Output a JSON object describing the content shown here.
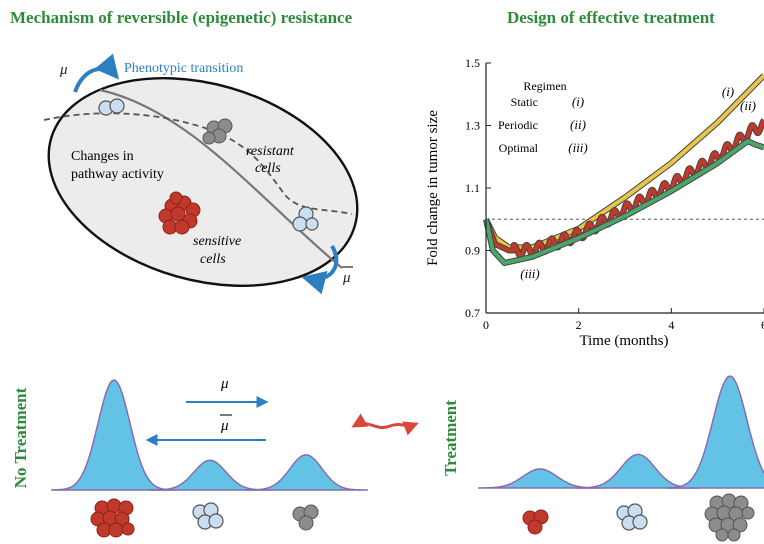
{
  "left_panel": {
    "title": "Mechanism of reversible (epigenetic) resistance",
    "mu_symbol": "μ",
    "mu_bar_symbol": "μ",
    "transition_label": "Phenotypic transition",
    "pathway_label_line1": "Changes in",
    "pathway_label_line2": "pathway activity",
    "resistant_line1": "resistant",
    "resistant_line2": "cells",
    "sensitive_line1": "sensitive",
    "sensitive_line2": "cells"
  },
  "right_panel": {
    "title": "Design of effective treatment"
  },
  "chart_data": {
    "type": "line",
    "xlabel": "Time (months)",
    "ylabel": "Fold change in tumor size",
    "xlim": [
      0,
      6
    ],
    "ylim": [
      0.7,
      1.5
    ],
    "xticks": [
      "0",
      "2",
      "4",
      "6"
    ],
    "yticks": [
      "0.7",
      "0.9",
      "1.1",
      "1.3",
      "1.5"
    ],
    "reference_line_y": 1.0,
    "legend_title": "Regimen",
    "series": [
      {
        "name": "Static",
        "tag": "(i)",
        "color": "#e8c64a",
        "x": [
          0,
          0.2,
          0.5,
          1.0,
          2.0,
          3.0,
          4.0,
          5.0,
          6.0
        ],
        "y": [
          1.0,
          0.94,
          0.91,
          0.91,
          0.97,
          1.07,
          1.18,
          1.31,
          1.46
        ]
      },
      {
        "name": "Periodic",
        "tag": "(ii)",
        "color": "#c0392b",
        "x": [
          0,
          0.2,
          0.5,
          1.0,
          2.0,
          3.0,
          4.0,
          5.0,
          5.8,
          6.0
        ],
        "y": [
          1.0,
          0.92,
          0.9,
          0.9,
          0.95,
          1.03,
          1.11,
          1.2,
          1.29,
          1.3
        ]
      },
      {
        "name": "Optimal",
        "tag": "(iii)",
        "color": "#4aa66a",
        "x": [
          0,
          0.15,
          0.4,
          1.0,
          2.0,
          3.0,
          4.0,
          5.0,
          5.65,
          5.8,
          6.0
        ],
        "y": [
          1.0,
          0.9,
          0.86,
          0.88,
          0.94,
          1.01,
          1.09,
          1.18,
          1.25,
          1.24,
          1.23
        ]
      }
    ]
  },
  "bottom": {
    "no_treatment_label": "No Treatment",
    "treatment_label": "Treatment",
    "mu_symbol": "μ",
    "mu_bar_symbol": "μ",
    "no_treatment_peaks": [
      {
        "population": "sensitive",
        "relative_height": 1.0
      },
      {
        "population": "transitional",
        "relative_height": 0.27
      },
      {
        "population": "resistant",
        "relative_height": 0.32
      }
    ],
    "treatment_peaks": [
      {
        "population": "sensitive",
        "relative_height": 0.17
      },
      {
        "population": "transitional",
        "relative_height": 0.3
      },
      {
        "population": "resistant",
        "relative_height": 1.0
      }
    ],
    "colors": {
      "distribution": "#62c3e6",
      "distribution_edge": "#8a6bb0",
      "sensitive_cell": "#c0392b",
      "transitional_cell": "#c9def0",
      "resistant_cell": "#8c8c8c",
      "arrow": "#2e7fc1",
      "title_green": "#2e8b3a"
    }
  }
}
